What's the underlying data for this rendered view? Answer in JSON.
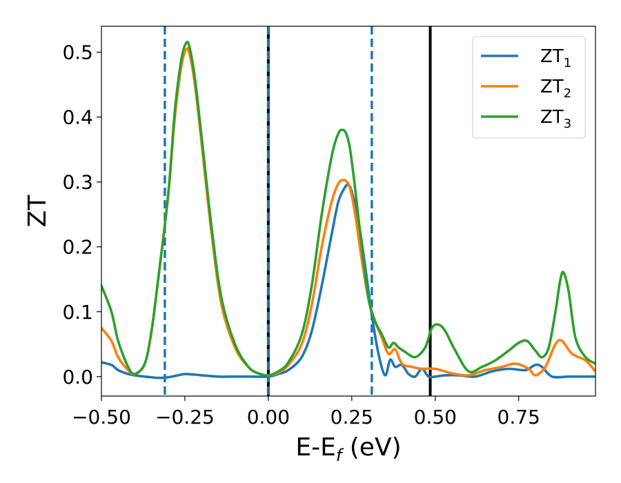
{
  "chart_data": {
    "type": "line",
    "title": "",
    "xlabel": "E-E",
    "xlabel_sub": "f",
    "xlabel_unit": " (eV)",
    "ylabel": "ZT",
    "xlim": [
      -0.5,
      0.98
    ],
    "ylim": [
      -0.03,
      0.54
    ],
    "xticks": [
      -0.5,
      -0.25,
      0.0,
      0.25,
      0.5,
      0.75
    ],
    "xtick_labels": [
      "−0.50",
      "−0.25",
      "0.00",
      "0.25",
      "0.50",
      "0.75"
    ],
    "yticks": [
      0.0,
      0.1,
      0.2,
      0.3,
      0.4,
      0.5
    ],
    "ytick_labels": [
      "0.0",
      "0.1",
      "0.2",
      "0.3",
      "0.4",
      "0.5"
    ],
    "grid": false,
    "legend_position": "top-right",
    "vlines": [
      {
        "x": -0.31,
        "color": "#1f77b4",
        "style": "dashed"
      },
      {
        "x": 0.0,
        "color": "#000000",
        "style": "solid"
      },
      {
        "x": 0.0,
        "color": "#1f77b4",
        "style": "dashed"
      },
      {
        "x": 0.31,
        "color": "#1f77b4",
        "style": "dashed"
      },
      {
        "x": 0.485,
        "color": "#000000",
        "style": "solid"
      }
    ],
    "series": [
      {
        "name": "ZT",
        "sub": "1",
        "color": "#1f77b4",
        "x": [
          -0.5,
          -0.47,
          -0.45,
          -0.42,
          -0.4,
          -0.37,
          -0.35,
          -0.33,
          -0.3,
          -0.27,
          -0.25,
          -0.22,
          -0.2,
          -0.15,
          -0.1,
          -0.05,
          0.0,
          0.03,
          0.06,
          0.1,
          0.13,
          0.16,
          0.19,
          0.21,
          0.23,
          0.24,
          0.25,
          0.27,
          0.29,
          0.31,
          0.33,
          0.35,
          0.365,
          0.38,
          0.4,
          0.42,
          0.44,
          0.46,
          0.48,
          0.5,
          0.53,
          0.57,
          0.62,
          0.67,
          0.72,
          0.77,
          0.8,
          0.82,
          0.85,
          0.9,
          0.95,
          0.98
        ],
        "y": [
          0.022,
          0.018,
          0.01,
          0.004,
          0.002,
          0.0,
          -0.001,
          -0.002,
          -0.001,
          0.002,
          0.004,
          0.003,
          0.002,
          0.0,
          0.0,
          0.0,
          0.0,
          0.004,
          0.01,
          0.03,
          0.07,
          0.14,
          0.22,
          0.27,
          0.292,
          0.295,
          0.285,
          0.24,
          0.17,
          0.095,
          0.035,
          0.002,
          0.026,
          0.015,
          0.018,
          0.004,
          0.0,
          0.012,
          0.0,
          0.0,
          0.002,
          0.002,
          0.0,
          0.008,
          0.012,
          0.01,
          0.018,
          0.015,
          0.0,
          0.0,
          0.0,
          0.0
        ]
      },
      {
        "name": "ZT",
        "sub": "2",
        "color": "#ff7f0e",
        "x": [
          -0.5,
          -0.47,
          -0.45,
          -0.42,
          -0.4,
          -0.37,
          -0.35,
          -0.33,
          -0.3,
          -0.28,
          -0.26,
          -0.245,
          -0.235,
          -0.22,
          -0.2,
          -0.17,
          -0.14,
          -0.1,
          -0.06,
          -0.03,
          0.0,
          0.03,
          0.06,
          0.1,
          0.13,
          0.16,
          0.19,
          0.21,
          0.225,
          0.235,
          0.245,
          0.26,
          0.28,
          0.3,
          0.32,
          0.34,
          0.36,
          0.38,
          0.4,
          0.43,
          0.46,
          0.5,
          0.55,
          0.6,
          0.65,
          0.7,
          0.74,
          0.78,
          0.8,
          0.83,
          0.86,
          0.88,
          0.91,
          0.95,
          0.98
        ],
        "y": [
          0.075,
          0.055,
          0.03,
          0.01,
          0.004,
          0.02,
          0.07,
          0.15,
          0.28,
          0.4,
          0.48,
          0.505,
          0.495,
          0.45,
          0.36,
          0.22,
          0.11,
          0.045,
          0.015,
          0.005,
          0.002,
          0.006,
          0.018,
          0.05,
          0.11,
          0.2,
          0.27,
          0.298,
          0.303,
          0.3,
          0.29,
          0.25,
          0.18,
          0.12,
          0.085,
          0.06,
          0.035,
          0.042,
          0.02,
          0.015,
          0.012,
          0.012,
          0.005,
          0.002,
          0.01,
          0.015,
          0.02,
          0.012,
          0.002,
          0.015,
          0.05,
          0.055,
          0.035,
          0.025,
          0.008
        ]
      },
      {
        "name": "ZT",
        "sub": "3",
        "color": "#2ca02c",
        "x": [
          -0.5,
          -0.47,
          -0.45,
          -0.42,
          -0.4,
          -0.37,
          -0.35,
          -0.33,
          -0.3,
          -0.28,
          -0.26,
          -0.245,
          -0.235,
          -0.22,
          -0.2,
          -0.17,
          -0.14,
          -0.1,
          -0.06,
          -0.03,
          0.0,
          0.03,
          0.06,
          0.1,
          0.13,
          0.16,
          0.19,
          0.21,
          0.225,
          0.235,
          0.245,
          0.26,
          0.28,
          0.3,
          0.32,
          0.34,
          0.36,
          0.375,
          0.39,
          0.41,
          0.44,
          0.47,
          0.49,
          0.51,
          0.53,
          0.56,
          0.6,
          0.64,
          0.68,
          0.72,
          0.75,
          0.775,
          0.8,
          0.82,
          0.84,
          0.86,
          0.875,
          0.885,
          0.9,
          0.92,
          0.95,
          0.98
        ],
        "y": [
          0.14,
          0.1,
          0.055,
          0.015,
          0.004,
          0.02,
          0.07,
          0.15,
          0.28,
          0.41,
          0.49,
          0.515,
          0.505,
          0.46,
          0.37,
          0.23,
          0.12,
          0.05,
          0.015,
          0.005,
          0.002,
          0.008,
          0.022,
          0.065,
          0.14,
          0.25,
          0.34,
          0.375,
          0.38,
          0.372,
          0.35,
          0.29,
          0.2,
          0.12,
          0.085,
          0.065,
          0.045,
          0.052,
          0.045,
          0.038,
          0.03,
          0.045,
          0.075,
          0.08,
          0.07,
          0.04,
          0.008,
          0.015,
          0.025,
          0.04,
          0.052,
          0.055,
          0.04,
          0.03,
          0.045,
          0.1,
          0.15,
          0.16,
          0.13,
          0.06,
          0.03,
          0.02
        ]
      }
    ]
  }
}
